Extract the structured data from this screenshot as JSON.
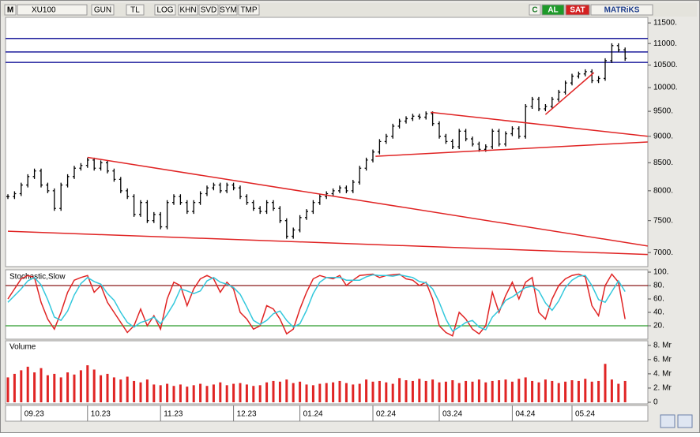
{
  "toolbar": {
    "symbol_menu": "M",
    "symbol": "XU100",
    "buttons": [
      "GUN",
      "TL",
      "LOG",
      "KHN",
      "SVD",
      "SYM",
      "TMP"
    ],
    "right_buttons": [
      "C",
      "AL",
      "SAT",
      "MATRiKS"
    ]
  },
  "chart_data": [
    {
      "type": "price",
      "log_scale": true,
      "color": "#000000",
      "ylim": [
        6790,
        11640
      ],
      "yticks": [
        {
          "value": 11500,
          "label": "11500."
        },
        {
          "value": 11000,
          "label": "11000."
        },
        {
          "value": 10500,
          "label": "10500."
        },
        {
          "value": 10000,
          "label": "10000."
        },
        {
          "value": 9500,
          "label": "9500."
        },
        {
          "value": 9000,
          "label": "9000."
        },
        {
          "value": 8500,
          "label": "8500."
        },
        {
          "value": 8000,
          "label": "8000."
        },
        {
          "value": 7500,
          "label": "7500."
        },
        {
          "value": 7000,
          "label": "7000."
        }
      ],
      "values": [
        7900,
        7950,
        8100,
        8250,
        8350,
        8100,
        8000,
        7700,
        8100,
        8250,
        8400,
        8450,
        8550,
        8400,
        8500,
        8350,
        8200,
        8000,
        7900,
        7600,
        7800,
        7500,
        7600,
        7400,
        7800,
        7900,
        7800,
        7650,
        7800,
        7950,
        8050,
        8100,
        8000,
        8100,
        8050,
        7900,
        7800,
        7700,
        7650,
        7800,
        7700,
        7500,
        7250,
        7350,
        7550,
        7650,
        7800,
        7900,
        7950,
        8000,
        8050,
        8000,
        8150,
        8400,
        8550,
        8700,
        8900,
        9000,
        9200,
        9300,
        9350,
        9400,
        9380,
        9450,
        9250,
        9000,
        8900,
        8800,
        9100,
        8950,
        8850,
        8750,
        8800,
        9100,
        8850,
        9050,
        9150,
        9000,
        9600,
        9750,
        9550,
        9600,
        9750,
        9900,
        10100,
        10250,
        10300,
        10350,
        10150,
        10200,
        10600,
        10950,
        10850,
        10650
      ],
      "levels": {
        "color": "#1c1c9c",
        "values": [
          11120,
          10800,
          10560
        ]
      },
      "trendline_color": "#e02424",
      "trendlines": [
        {
          "x": [
            12,
            96.4
          ],
          "y": [
            8600,
            7100
          ]
        },
        {
          "x": [
            0,
            96.4
          ],
          "y": [
            7330,
            6970
          ]
        },
        {
          "x": [
            63.7,
            96.4
          ],
          "y": [
            9480,
            9000
          ]
        },
        {
          "x": [
            55.4,
            96.4
          ],
          "y": [
            8620,
            8890
          ]
        },
        {
          "x": [
            81,
            88.3
          ],
          "y": [
            9435,
            10330
          ]
        }
      ]
    },
    {
      "type": "line",
      "title": "Stochastic,Slow",
      "ylim": [
        0,
        100
      ],
      "yticks": [
        {
          "value": 100,
          "label": "100."
        },
        {
          "value": 80,
          "label": "80."
        },
        {
          "value": 60,
          "label": "60."
        },
        {
          "value": 40,
          "label": "40."
        },
        {
          "value": 20,
          "label": "20."
        }
      ],
      "levels": [
        {
          "value": 80,
          "color": "#8b1a1a"
        },
        {
          "value": 20,
          "color": "#2a9a2a"
        }
      ],
      "series": [
        {
          "color": "#e02424",
          "values": [
            60,
            75,
            90,
            95,
            92,
            55,
            30,
            15,
            40,
            70,
            88,
            92,
            95,
            70,
            80,
            55,
            40,
            25,
            10,
            20,
            45,
            20,
            35,
            15,
            60,
            85,
            80,
            50,
            75,
            90,
            95,
            90,
            70,
            85,
            75,
            40,
            30,
            15,
            20,
            50,
            45,
            30,
            8,
            15,
            45,
            70,
            90,
            95,
            92,
            90,
            95,
            80,
            88,
            95,
            96,
            97,
            92,
            95,
            96,
            97,
            90,
            88,
            80,
            85,
            60,
            20,
            10,
            5,
            40,
            30,
            15,
            8,
            20,
            70,
            40,
            65,
            85,
            60,
            85,
            92,
            40,
            30,
            60,
            80,
            90,
            95,
            97,
            93,
            50,
            35,
            80,
            97,
            85,
            30
          ]
        },
        {
          "color": "#33c8dc",
          "values": [
            55,
            65,
            75,
            87,
            92,
            81,
            59,
            33,
            28,
            42,
            66,
            83,
            92,
            86,
            82,
            68,
            58,
            40,
            25,
            18,
            25,
            28,
            33,
            23,
            37,
            53,
            75,
            72,
            68,
            72,
            87,
            92,
            85,
            82,
            77,
            67,
            48,
            28,
            22,
            28,
            38,
            42,
            28,
            18,
            23,
            43,
            68,
            85,
            92,
            92,
            92,
            88,
            88,
            88,
            93,
            96,
            95,
            95,
            94,
            96,
            94,
            92,
            86,
            84,
            75,
            55,
            30,
            12,
            18,
            25,
            28,
            18,
            14,
            33,
            43,
            58,
            63,
            70,
            77,
            79,
            72,
            54,
            43,
            57,
            77,
            88,
            94,
            95,
            80,
            59,
            55,
            71,
            87,
            71
          ]
        }
      ]
    },
    {
      "type": "bar",
      "title": "Volume",
      "color": "#e02424",
      "ylim": [
        0,
        8.6
      ],
      "yticks": [
        {
          "value": 8,
          "label": "8. Mr"
        },
        {
          "value": 6,
          "label": "6. Mr"
        },
        {
          "value": 4,
          "label": "4. Mr"
        },
        {
          "value": 2,
          "label": "2. Mr"
        },
        0
      ],
      "categories": [
        null,
        null,
        "09.23",
        null,
        null,
        null,
        null,
        null,
        null,
        null,
        null,
        null,
        "10.23",
        null,
        null,
        null,
        null,
        null,
        null,
        null,
        null,
        null,
        null,
        "11.23",
        null,
        null,
        null,
        null,
        null,
        null,
        null,
        null,
        null,
        null,
        "12.23",
        null,
        null,
        null,
        null,
        null,
        null,
        null,
        null,
        null,
        "01.24",
        null,
        null,
        null,
        null,
        null,
        null,
        null,
        null,
        null,
        null,
        "02.24",
        null,
        null,
        null,
        null,
        null,
        null,
        null,
        null,
        null,
        "03.24",
        null,
        null,
        null,
        null,
        null,
        null,
        null,
        null,
        null,
        null,
        "04.24",
        null,
        null,
        null,
        null,
        null,
        null,
        null,
        null,
        "05.24",
        null,
        null,
        null,
        null,
        null,
        null,
        null,
        null
      ],
      "values": [
        3.5,
        4.0,
        4.5,
        5.0,
        4.2,
        4.8,
        3.8,
        4.0,
        3.5,
        4.2,
        3.9,
        4.5,
        5.2,
        4.6,
        3.8,
        4.0,
        3.5,
        3.2,
        3.6,
        3.0,
        2.8,
        3.2,
        2.5,
        2.4,
        2.6,
        2.3,
        2.5,
        2.2,
        2.4,
        2.6,
        2.3,
        2.5,
        2.8,
        2.4,
        2.6,
        2.7,
        2.5,
        2.3,
        2.4,
        2.8,
        3.0,
        2.9,
        3.2,
        2.7,
        2.9,
        2.5,
        2.4,
        2.6,
        2.7,
        2.8,
        3.0,
        2.7,
        2.5,
        2.6,
        3.2,
        2.9,
        3.0,
        2.8,
        2.6,
        3.4,
        3.1,
        3.0,
        3.3,
        3.0,
        3.2,
        2.8,
        2.9,
        3.1,
        2.7,
        3.0,
        2.9,
        3.2,
        2.8,
        3.0,
        3.1,
        3.2,
        2.9,
        3.3,
        3.5,
        3.0,
        2.8,
        3.2,
        3.0,
        2.7,
        2.9,
        3.1,
        3.0,
        3.3,
        2.9,
        3.0,
        5.4,
        3.2,
        2.6,
        3.0
      ]
    }
  ]
}
